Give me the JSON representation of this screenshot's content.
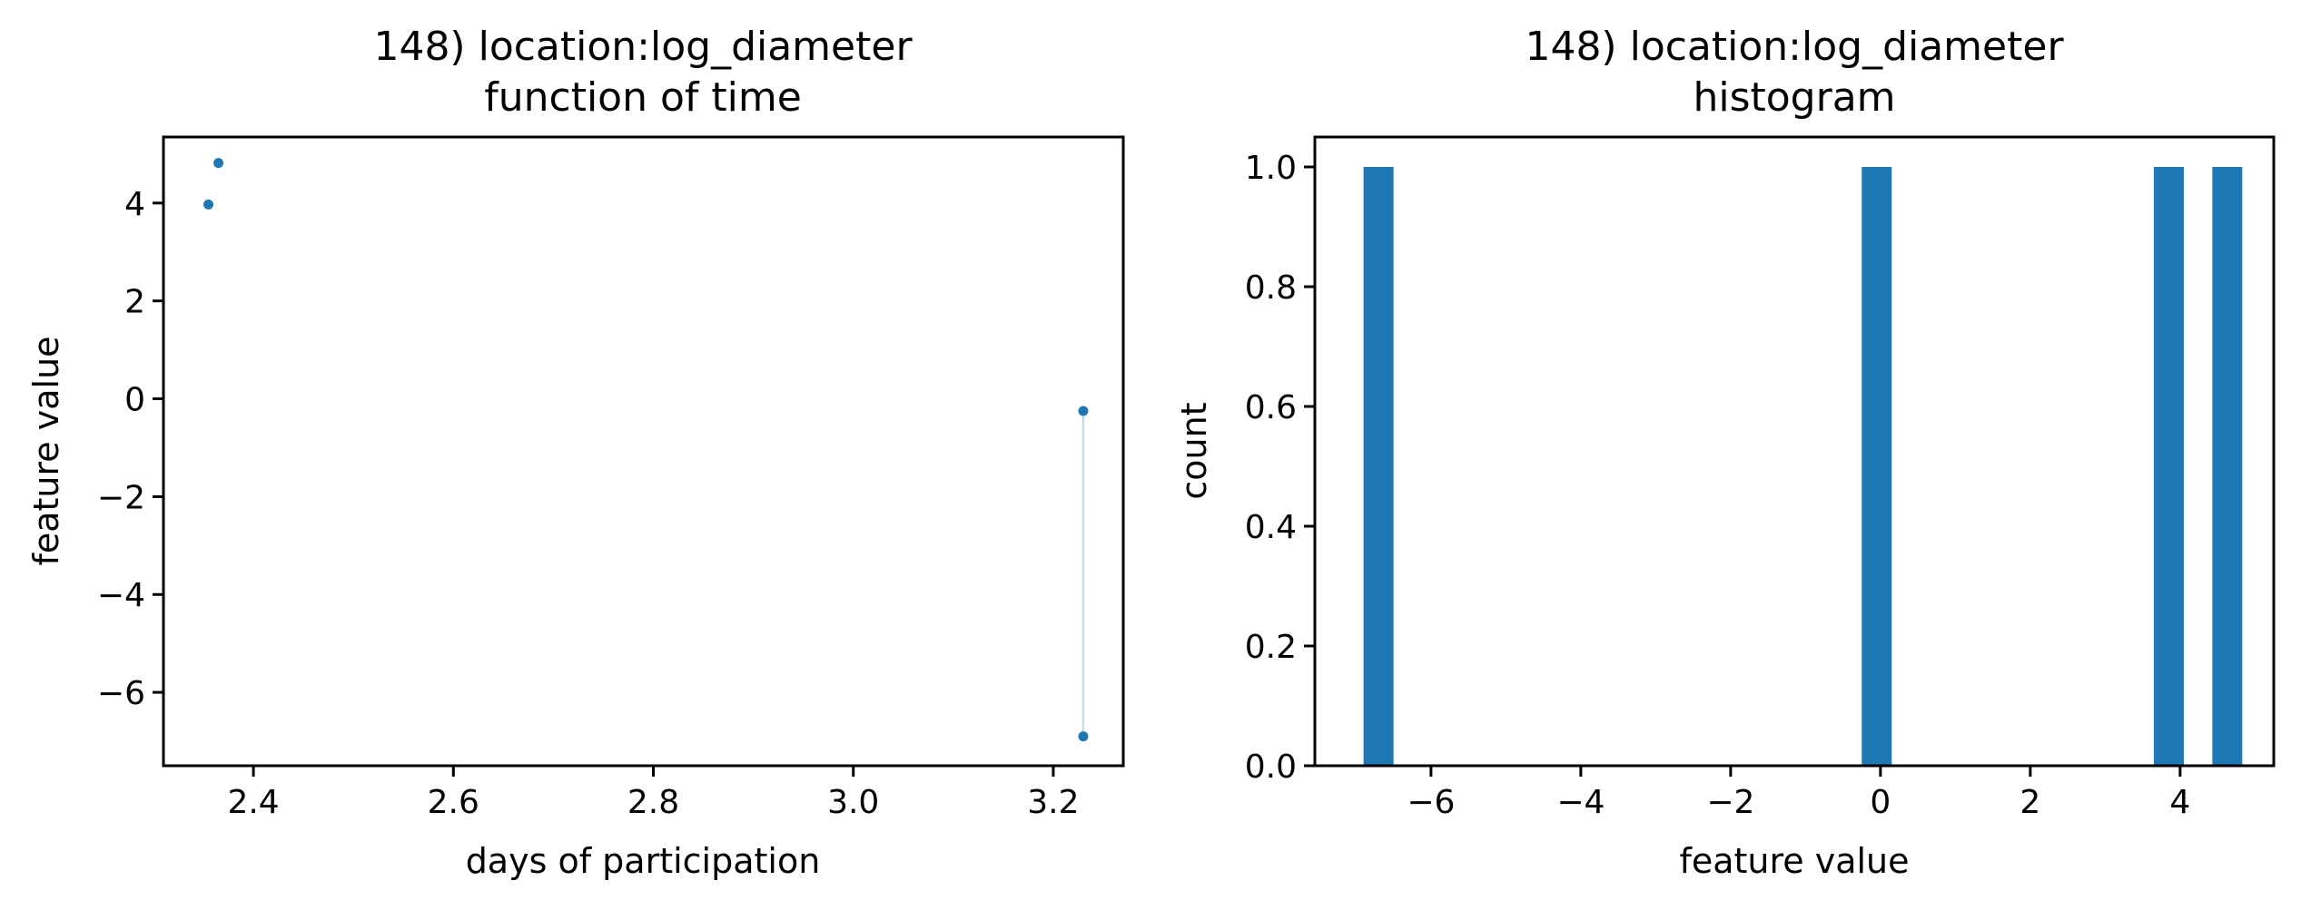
{
  "colors": {
    "series": "#1f77b4",
    "line": "#a8c8e8",
    "axis": "#000000"
  },
  "chart_data": [
    {
      "type": "scatter",
      "title_line1": "148) location:log_diameter",
      "title_line2": "function of time",
      "xlabel": "days of participation",
      "ylabel": "feature value",
      "xlim": [
        2.31,
        3.27
      ],
      "ylim": [
        -7.5,
        5.35
      ],
      "xticks": [
        2.4,
        2.6,
        2.8,
        3.0,
        3.2
      ],
      "xtick_labels": [
        "2.4",
        "2.6",
        "2.8",
        "3.0",
        "3.2"
      ],
      "yticks": [
        -6,
        -4,
        -2,
        0,
        2,
        4
      ],
      "ytick_labels": [
        "−6",
        "−4",
        "−2",
        "0",
        "2",
        "4"
      ],
      "points": [
        {
          "x": 2.355,
          "y": 3.97
        },
        {
          "x": 2.365,
          "y": 4.82
        },
        {
          "x": 3.23,
          "y": -0.25
        },
        {
          "x": 3.23,
          "y": -6.9
        }
      ],
      "segments": [
        [
          2,
          3
        ]
      ],
      "grid": false
    },
    {
      "type": "bar",
      "title_line1": "148) location:log_diameter",
      "title_line2": "histogram",
      "xlabel": "feature value",
      "ylabel": "count",
      "xlim": [
        -7.55,
        5.25
      ],
      "ylim": [
        0,
        1.05
      ],
      "xticks": [
        -6,
        -4,
        -2,
        0,
        2,
        4
      ],
      "xtick_labels": [
        "−6",
        "−4",
        "−2",
        "0",
        "2",
        "4"
      ],
      "yticks": [
        0.0,
        0.2,
        0.4,
        0.6,
        0.8,
        1.0
      ],
      "ytick_labels": [
        "0.0",
        "0.2",
        "0.4",
        "0.6",
        "0.8",
        "1.0"
      ],
      "bars": [
        {
          "x0": -6.9,
          "x1": -6.5,
          "value": 1.0
        },
        {
          "x0": -0.25,
          "x1": 0.15,
          "value": 1.0
        },
        {
          "x0": 3.65,
          "x1": 4.05,
          "value": 1.0
        },
        {
          "x0": 4.43,
          "x1": 4.83,
          "value": 1.0
        }
      ],
      "grid": false
    }
  ]
}
